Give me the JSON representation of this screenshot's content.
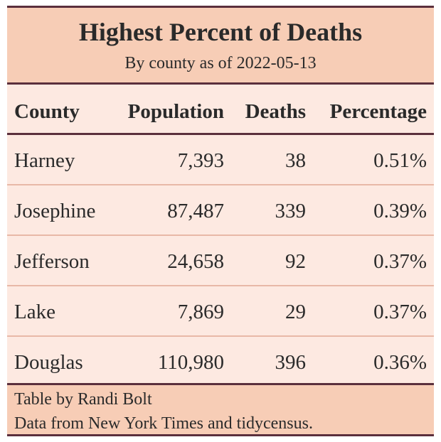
{
  "table": {
    "title": "Highest Percent of Deaths",
    "subtitle": "By county as of 2022-05-13",
    "columns": [
      "County",
      "Population",
      "Deaths",
      "Percentage"
    ],
    "rows": [
      {
        "county": "Harney",
        "population": "7,393",
        "deaths": "38",
        "percentage": "0.51%"
      },
      {
        "county": "Josephine",
        "population": "87,487",
        "deaths": "339",
        "percentage": "0.39%"
      },
      {
        "county": "Jefferson",
        "population": "24,658",
        "deaths": "92",
        "percentage": "0.37%"
      },
      {
        "county": "Lake",
        "population": "7,869",
        "deaths": "29",
        "percentage": "0.37%"
      },
      {
        "county": "Douglas",
        "population": "110,980",
        "deaths": "396",
        "percentage": "0.36%"
      }
    ],
    "source_lines": [
      "Table by Randi Bolt",
      "Data from New York Times and tidycensus."
    ]
  },
  "colors": {
    "title_background": "#f7cdb6",
    "row_background": "#fde9e1",
    "rule_dark": "#5b2f3c",
    "rule_light": "#e8b8a7"
  }
}
